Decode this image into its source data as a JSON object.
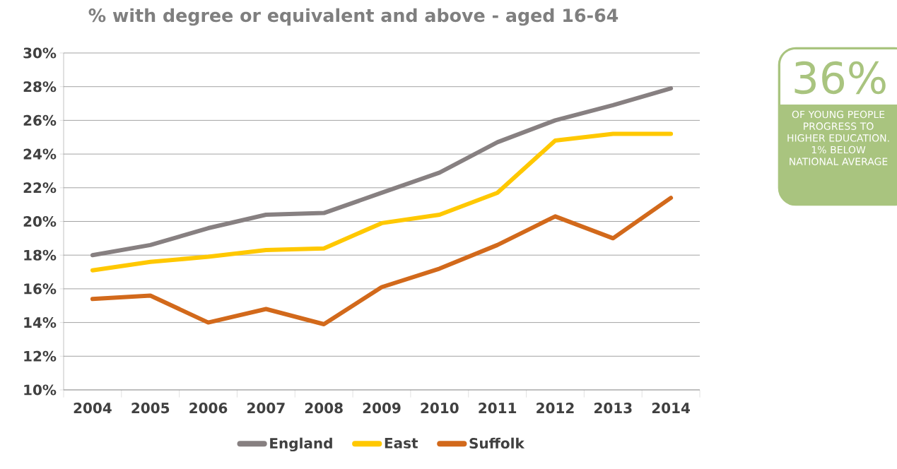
{
  "chart_data": {
    "type": "line",
    "title": "% with degree or equivalent and above - aged 16-64",
    "categories": [
      "2004",
      "2005",
      "2006",
      "2007",
      "2008",
      "2009",
      "2010",
      "2011",
      "2012",
      "2013",
      "2014"
    ],
    "series": [
      {
        "name": "England",
        "color": "#878081",
        "values": [
          18.0,
          18.6,
          19.6,
          20.4,
          20.5,
          21.7,
          22.9,
          24.7,
          26.0,
          26.9,
          27.9
        ]
      },
      {
        "name": "East",
        "color": "#ffc800",
        "values": [
          17.1,
          17.6,
          17.9,
          18.3,
          18.4,
          19.9,
          20.4,
          21.7,
          24.8,
          25.2,
          25.2
        ]
      },
      {
        "name": "Suffolk",
        "color": "#d2691b",
        "values": [
          15.4,
          15.6,
          14.0,
          14.8,
          13.9,
          16.1,
          17.2,
          18.6,
          20.3,
          19.0,
          21.4
        ]
      }
    ],
    "ylim": [
      10,
      30
    ],
    "yticks": [
      {
        "value": 10,
        "label": "10%"
      },
      {
        "value": 12,
        "label": "12%"
      },
      {
        "value": 14,
        "label": "14%"
      },
      {
        "value": 16,
        "label": "16%"
      },
      {
        "value": 18,
        "label": "18%"
      },
      {
        "value": 20,
        "label": "20%"
      },
      {
        "value": 22,
        "label": "22%"
      },
      {
        "value": 24,
        "label": "24%"
      },
      {
        "value": 26,
        "label": "26%"
      },
      {
        "value": 28,
        "label": "28%"
      },
      {
        "value": 30,
        "label": "30%"
      }
    ],
    "grid": "y",
    "legend": "bottom",
    "marker": "none",
    "line_style": "solid",
    "annotations": [
      "36%",
      "OF YOUNG PEOPLE PROGRESS TO HIGHER EDUCATION. 1% BELOW NATIONAL AVERAGE"
    ]
  }
}
